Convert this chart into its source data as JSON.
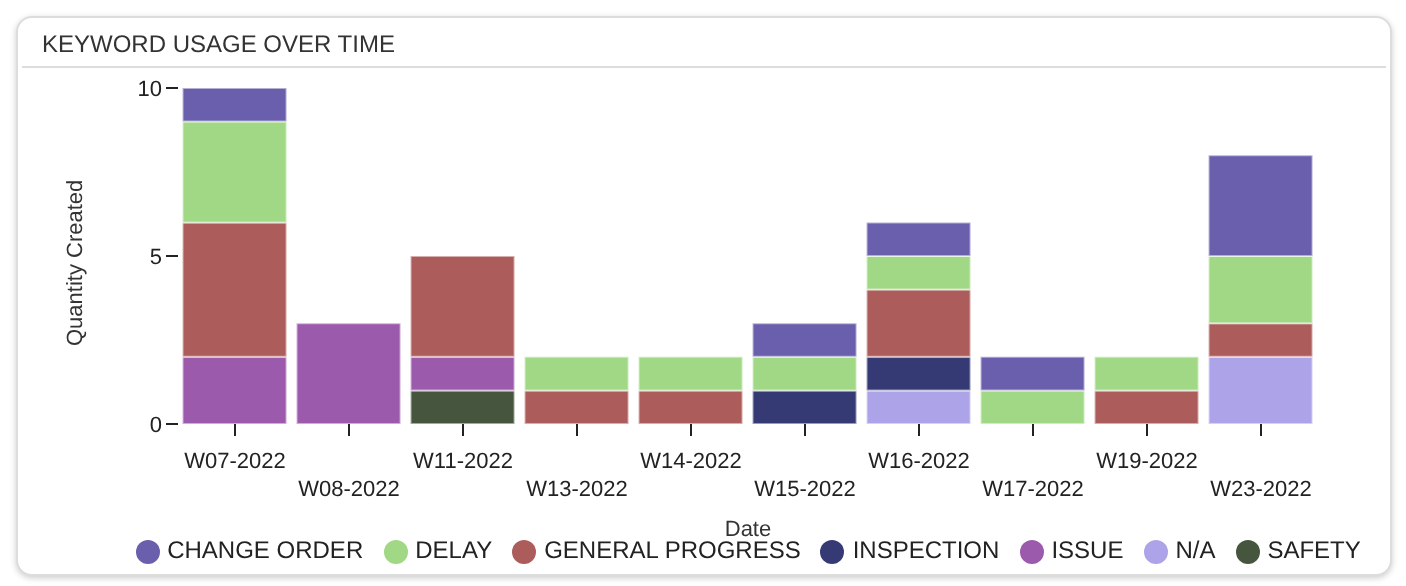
{
  "chart_data": {
    "type": "bar",
    "title": "KEYWORD USAGE OVER TIME",
    "xlabel": "Date",
    "ylabel": "Quantity Created",
    "categories": [
      "W07-2022",
      "W08-2022",
      "W11-2022",
      "W13-2022",
      "W14-2022",
      "W15-2022",
      "W16-2022",
      "W17-2022",
      "W19-2022",
      "W23-2022"
    ],
    "stacked": true,
    "ylim": [
      0,
      10
    ],
    "yticks": [
      0,
      5,
      10
    ],
    "grid": false,
    "legend": "bottom",
    "series": [
      {
        "name": "N/A",
        "color": "#ada3e8",
        "values": [
          0,
          0,
          0,
          0,
          0,
          0,
          1,
          0,
          0,
          2
        ]
      },
      {
        "name": "SAFETY",
        "color": "#46553e",
        "values": [
          0,
          0,
          1,
          0,
          0,
          0,
          0,
          0,
          0,
          0
        ]
      },
      {
        "name": "INSPECTION",
        "color": "#353a75",
        "values": [
          0,
          0,
          0,
          0,
          0,
          1,
          1,
          0,
          0,
          0
        ]
      },
      {
        "name": "ISSUE",
        "color": "#9c5aac",
        "values": [
          2,
          3,
          1,
          0,
          0,
          0,
          0,
          0,
          0,
          0
        ]
      },
      {
        "name": "GENERAL PROGRESS",
        "color": "#ad5c5c",
        "values": [
          4,
          0,
          3,
          1,
          1,
          0,
          2,
          0,
          1,
          1
        ]
      },
      {
        "name": "DELAY",
        "color": "#a0d886",
        "values": [
          3,
          0,
          0,
          1,
          1,
          1,
          1,
          1,
          1,
          2
        ]
      },
      {
        "name": "CHANGE ORDER",
        "color": "#6a5fac",
        "values": [
          1,
          0,
          0,
          0,
          0,
          1,
          1,
          1,
          0,
          3
        ]
      }
    ]
  }
}
